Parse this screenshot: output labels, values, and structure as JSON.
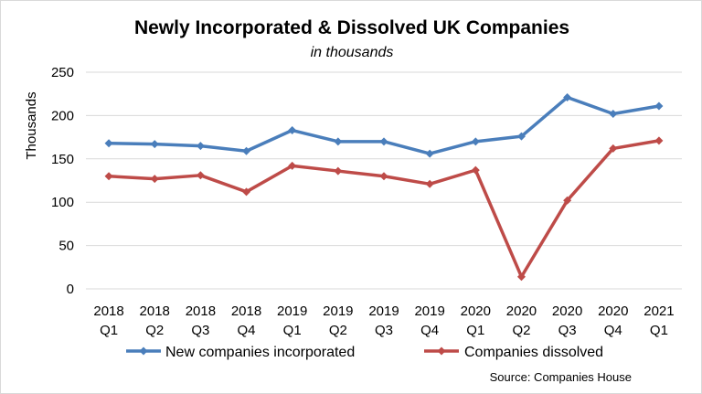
{
  "chart_data": {
    "type": "line",
    "title": "Newly Incorporated & Dissolved UK Companies",
    "subtitle": "in thousands",
    "ylabel": "Thousands",
    "xlabel": "",
    "ylim": [
      0,
      250
    ],
    "yticks": [
      0,
      50,
      100,
      150,
      200,
      250
    ],
    "categories": [
      [
        "2018",
        "Q1"
      ],
      [
        "2018",
        "Q2"
      ],
      [
        "2018",
        "Q3"
      ],
      [
        "2018",
        "Q4"
      ],
      [
        "2019",
        "Q1"
      ],
      [
        "2019",
        "Q2"
      ],
      [
        "2019",
        "Q3"
      ],
      [
        "2019",
        "Q4"
      ],
      [
        "2020",
        "Q1"
      ],
      [
        "2020",
        "Q2"
      ],
      [
        "2020",
        "Q3"
      ],
      [
        "2020",
        "Q4"
      ],
      [
        "2021",
        "Q1"
      ]
    ],
    "grid": "horizontal",
    "legend_position": "bottom",
    "series": [
      {
        "name": "New companies incorporated",
        "color": "#4a7ebb",
        "values": [
          168,
          167,
          165,
          159,
          183,
          170,
          170,
          156,
          170,
          176,
          221,
          202,
          211
        ]
      },
      {
        "name": "Companies dissolved",
        "color": "#be4b48",
        "values": [
          130,
          127,
          131,
          112,
          142,
          136,
          130,
          121,
          137,
          14,
          102,
          162,
          171
        ]
      }
    ],
    "source": "Source: Companies House"
  }
}
